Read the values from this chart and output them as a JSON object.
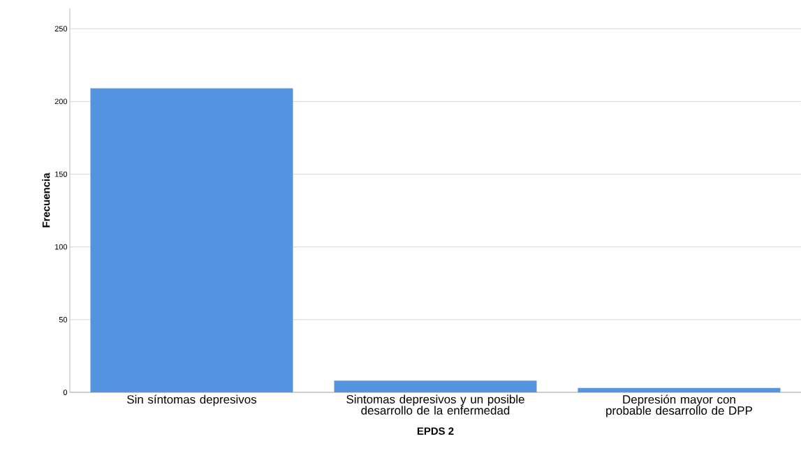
{
  "chart_data": {
    "type": "bar",
    "xlabel": "EPDS 2",
    "ylabel": "Frecuencia",
    "categories": [
      "Sin síntomas depresivos",
      "Sintomas depresivos y un posible desarrollo de la enfermedad",
      "Depresión mayor con probable desarrollo de DPP"
    ],
    "values": [
      209,
      8,
      3
    ],
    "color": "#5594e0",
    "ylim": [
      0,
      264
    ],
    "yticks": [
      0,
      50,
      100,
      150,
      200,
      250
    ],
    "grid": "y"
  }
}
